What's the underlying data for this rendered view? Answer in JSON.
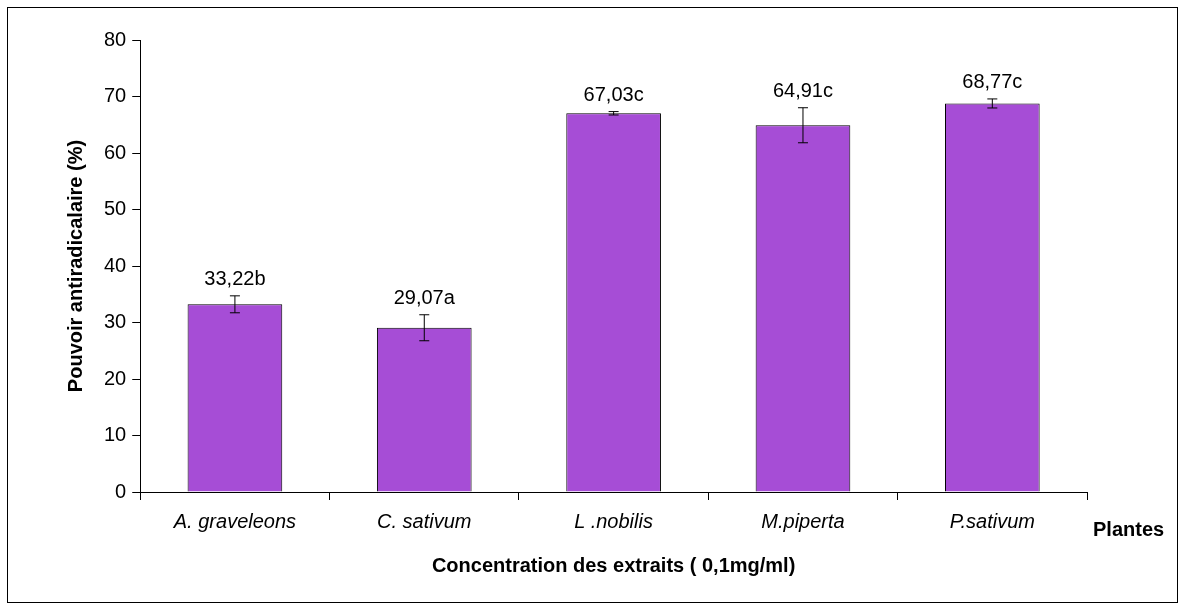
{
  "chart_data": {
    "type": "bar",
    "categories": [
      "A. graveleons",
      "C. sativum",
      "L .nobilis",
      "M.piperta",
      "P.sativum"
    ],
    "values": [
      33.22,
      29.07,
      67.03,
      64.91,
      68.77
    ],
    "value_labels": [
      "33,22b",
      "29,07a",
      "67,03c",
      "64,91c",
      "68,77c"
    ],
    "errors": [
      1.5,
      2.3,
      0.3,
      3.1,
      0.8
    ],
    "color": "#a64dd6",
    "ylim": [
      0,
      80
    ],
    "yticks": [
      0,
      10,
      20,
      30,
      40,
      50,
      60,
      70,
      80
    ],
    "ylabel": "Pouvoir antiradicalaire (%)",
    "xlabel": "Concentration des extraits ( 0,1mg/ml)",
    "annotations": [
      "Plantes"
    ],
    "grid": false,
    "legend": false
  }
}
